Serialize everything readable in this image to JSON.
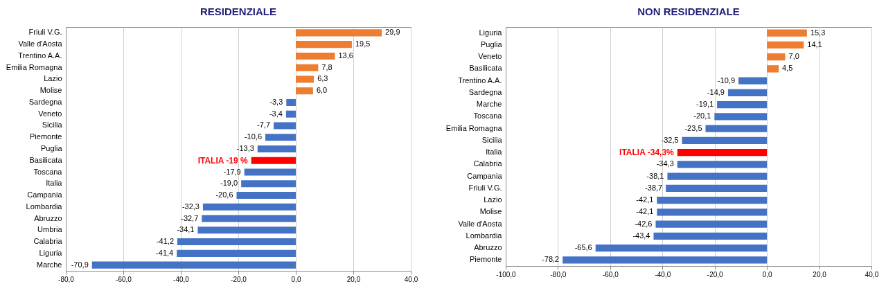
{
  "chart_data": [
    {
      "type": "bar",
      "orientation": "horizontal",
      "title": "RESIDENZIALE",
      "categories": [
        "Friuli V.G.",
        "Valle d'Aosta",
        "Trentino A.A.",
        "Emilia Romagna",
        "Lazio",
        "Molise",
        "Sardegna",
        "Veneto",
        "Sicilia",
        "Piemonte",
        "Puglia",
        "Basilicata",
        "Toscana",
        "Italia",
        "Campania",
        "Lombardia",
        "Abruzzo",
        "Umbria",
        "Calabria",
        "Liguria",
        "Marche"
      ],
      "values": [
        29.9,
        19.5,
        13.6,
        7.8,
        6.3,
        6.0,
        -3.3,
        -3.4,
        -7.7,
        -10.6,
        -13.3,
        -15.5,
        -17.9,
        -19.0,
        -20.6,
        -32.3,
        -32.7,
        -34.1,
        -41.2,
        -41.4,
        -70.9
      ],
      "value_labels": [
        "29,9",
        "19,5",
        "13,6",
        "7,8",
        "6,3",
        "6,0",
        "-3,3",
        "-3,4",
        "-7,7",
        "-10,6",
        "-13,3",
        null,
        "-17,9",
        "-19,0",
        "-20,6",
        "-32,3",
        "-32,7",
        "-34,1",
        "-41,2",
        "-41,4",
        "-70,9"
      ],
      "colors": [
        "#ed7d31",
        "#ed7d31",
        "#ed7d31",
        "#ed7d31",
        "#ed7d31",
        "#ed7d31",
        "#4472c4",
        "#4472c4",
        "#4472c4",
        "#4472c4",
        "#4472c4",
        "#ff0000",
        "#4472c4",
        "#4472c4",
        "#4472c4",
        "#4472c4",
        "#4472c4",
        "#4472c4",
        "#4472c4",
        "#4472c4",
        "#4472c4"
      ],
      "xlim": [
        -80,
        40
      ],
      "xticks": [
        {
          "value": -80,
          "label": "-80,0"
        },
        {
          "value": -60,
          "label": "-60,0"
        },
        {
          "value": -40,
          "label": "-40,0"
        },
        {
          "value": -20,
          "label": "-20,0"
        },
        {
          "value": 0,
          "label": "0,0"
        },
        {
          "value": 20,
          "label": "20,0"
        },
        {
          "value": 40,
          "label": "40,0"
        }
      ],
      "grid": "x",
      "annotations": [
        {
          "text": "ITALIA -19 %",
          "x": -15.5,
          "y": "Basilicata"
        }
      ]
    },
    {
      "type": "bar",
      "orientation": "horizontal",
      "title": "NON RESIDENZIALE",
      "categories": [
        "Liguria",
        "Puglia",
        "Veneto",
        "Basilicata",
        "Trentino A.A.",
        "Sardegna",
        "Marche",
        "Toscana",
        "Emilia Romagna",
        "Sicilia",
        "Italia",
        "Calabria",
        "Campania",
        "Friuli V.G.",
        "Lazio",
        "Molise",
        "Valle d'Aosta",
        "Lombardia",
        "Abruzzo",
        "Piemonte"
      ],
      "values": [
        15.3,
        14.1,
        7.0,
        4.5,
        -10.9,
        -14.9,
        -19.1,
        -20.1,
        -23.5,
        -32.5,
        -34.3,
        -34.3,
        -38.1,
        -38.7,
        -42.1,
        -42.1,
        -42.6,
        -43.4,
        -65.6,
        -78.2
      ],
      "value_labels": [
        "15,3",
        "14,1",
        "7,0",
        "4,5",
        "-10,9",
        "-14,9",
        "-19,1",
        "-20,1",
        "-23,5",
        "-32,5",
        null,
        "-34,3",
        "-38,1",
        "-38,7",
        "-42,1",
        "-42,1",
        "-42,6",
        "-43,4",
        "-65,6",
        "-78,2"
      ],
      "colors": [
        "#ed7d31",
        "#ed7d31",
        "#ed7d31",
        "#ed7d31",
        "#4472c4",
        "#4472c4",
        "#4472c4",
        "#4472c4",
        "#4472c4",
        "#4472c4",
        "#ff0000",
        "#4472c4",
        "#4472c4",
        "#4472c4",
        "#4472c4",
        "#4472c4",
        "#4472c4",
        "#4472c4",
        "#4472c4",
        "#4472c4"
      ],
      "xlim": [
        -100,
        40
      ],
      "xticks": [
        {
          "value": -100,
          "label": "-100,0"
        },
        {
          "value": -80,
          "label": "-80,0"
        },
        {
          "value": -60,
          "label": "-60,0"
        },
        {
          "value": -40,
          "label": "-40,0"
        },
        {
          "value": -20,
          "label": "-20,0"
        },
        {
          "value": 0,
          "label": "0,0"
        },
        {
          "value": 20,
          "label": "20,0"
        },
        {
          "value": 40,
          "label": "40,0"
        }
      ],
      "grid": "x",
      "annotations": [
        {
          "text": "ITALIA -34,3%",
          "x": -34.3,
          "y": "Italia"
        }
      ]
    }
  ]
}
